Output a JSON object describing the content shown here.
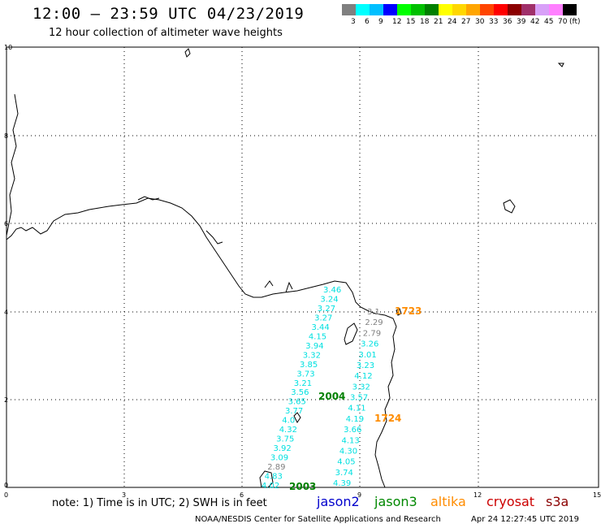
{
  "header": {
    "title": "12:00 – 23:59 UTC 04/23/2019",
    "subtitle": "12 hour collection of altimeter wave heights"
  },
  "legend": {
    "colors": [
      "#808080",
      "#00ffff",
      "#00bfff",
      "#0000ff",
      "#00ff00",
      "#00c000",
      "#008000",
      "#ffff00",
      "#ffd700",
      "#ffa500",
      "#ff4500",
      "#ff0000",
      "#8b0000",
      "#a0306a",
      "#d8a0f8",
      "#ff80ff",
      "#000000"
    ],
    "labels": [
      "3",
      "6",
      "9",
      "12",
      "15",
      "18",
      "21",
      "24",
      "27",
      "30",
      "33",
      "36",
      "39",
      "42",
      "45",
      "70",
      "(ft)"
    ]
  },
  "axes": {
    "x_ticks": [
      "0",
      "3",
      "6",
      "9",
      "12",
      "15"
    ],
    "y_ticks": [
      "10",
      "8",
      "6",
      "4",
      "2",
      "0"
    ]
  },
  "track_times": {
    "t1723": "1723",
    "t2004": "2004",
    "t1724": "1724",
    "t2003": "2003"
  },
  "track_left_values": [
    "3.46",
    "3.24",
    "3.27",
    "3.27",
    "3.44",
    "4.15",
    "3.94",
    "3.32",
    "3.85",
    "3.73",
    "3.21",
    "3.56",
    "3.65",
    "3.77",
    "4.0",
    "4.32",
    "3.75",
    "3.92",
    "3.09",
    "2.89",
    "4.83",
    "4.02"
  ],
  "track_right_values": [
    "3.1",
    "2.29",
    "2.79",
    "3.26",
    "3.01",
    "3.23",
    "4.12",
    "3.32",
    "3.57",
    "4.11",
    "4.19",
    "3.66",
    "4.13",
    "4.30",
    "4.05",
    "3.74",
    "4.39"
  ],
  "footer": {
    "note": "note:  1) Time is in UTC;  2) SWH is in feet",
    "satellites": [
      {
        "name": "jason2",
        "color": "#0000cc"
      },
      {
        "name": "jason3",
        "color": "#008800"
      },
      {
        "name": "altika",
        "color": "#ff8c00"
      },
      {
        "name": "cryosat",
        "color": "#cc0000"
      },
      {
        "name": "s3a",
        "color": "#8b0000"
      }
    ],
    "credit": "NOAA/NESDIS Center for Satellite Applications and Research",
    "timestamp": "Apr 24 12:27:45 UTC 2019"
  },
  "colors": {
    "cyan_values": "#00e0e0",
    "gray_values": "#808080",
    "jason3_time": "#008000",
    "altika_time": "#ff8c00"
  }
}
